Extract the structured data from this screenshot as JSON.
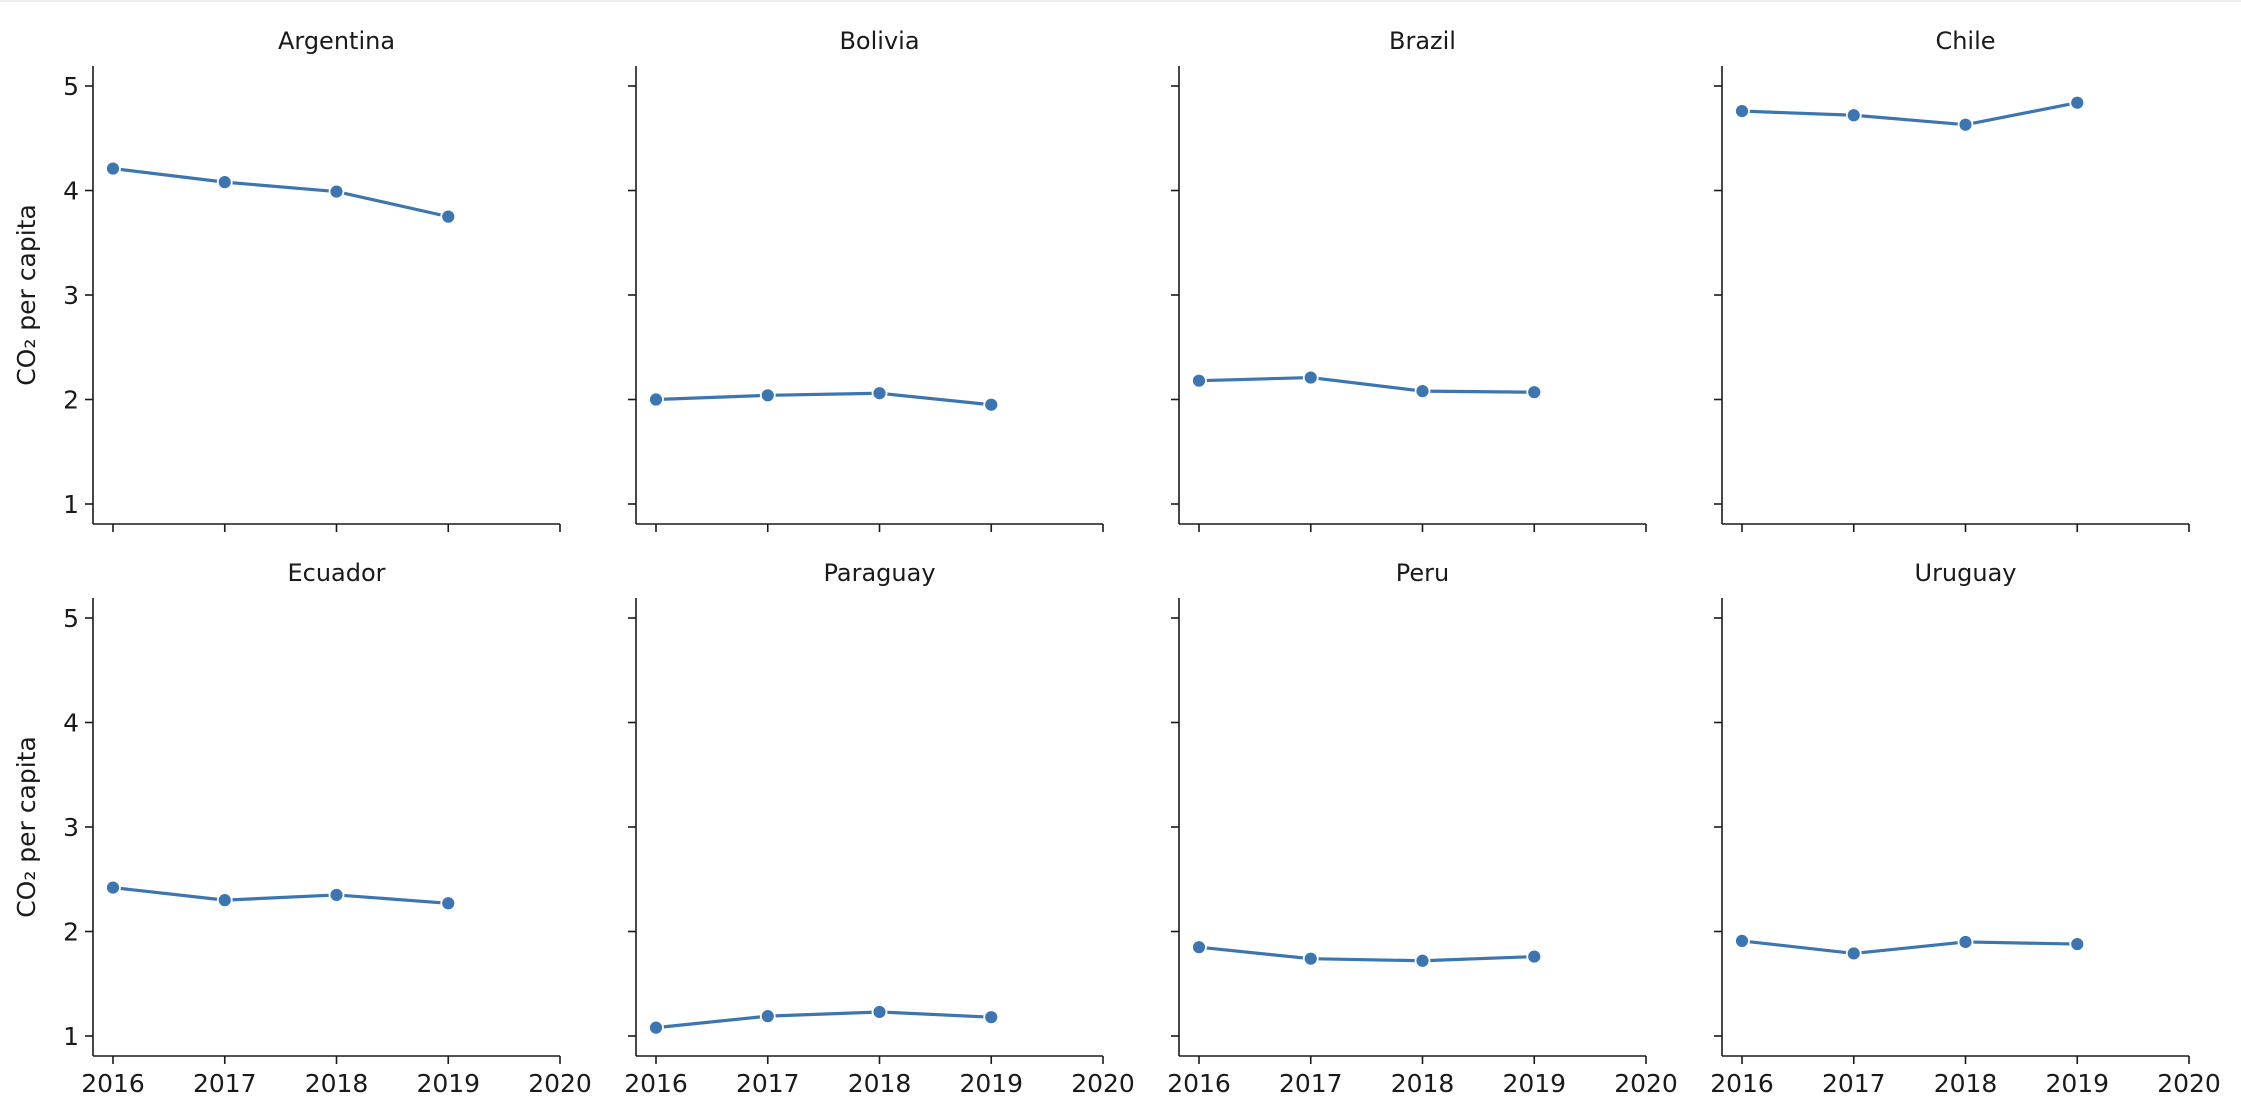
{
  "chart_data": {
    "type": "line",
    "layout": "facet-grid-2x4",
    "xlabel": "",
    "ylabel": "CO₂ per capita",
    "x_ticks": [
      "2016",
      "2017",
      "2018",
      "2019",
      "2020"
    ],
    "y_ticks": [
      "1",
      "2",
      "3",
      "4",
      "5"
    ],
    "xlim": [
      2016,
      2020
    ],
    "ylim": [
      1,
      5
    ],
    "x": [
      2016,
      2017,
      2018,
      2019
    ],
    "line_color": "#3d75b1",
    "marker": "circle",
    "grid": false,
    "sharey": true,
    "panels": [
      {
        "title": "Argentina",
        "values": [
          4.21,
          4.08,
          3.99,
          3.75
        ]
      },
      {
        "title": "Bolivia",
        "values": [
          2.0,
          2.04,
          2.06,
          1.95
        ]
      },
      {
        "title": "Brazil",
        "values": [
          2.18,
          2.21,
          2.08,
          2.07
        ]
      },
      {
        "title": "Chile",
        "values": [
          4.76,
          4.72,
          4.63,
          4.84
        ]
      },
      {
        "title": "Ecuador",
        "values": [
          2.42,
          2.3,
          2.35,
          2.27
        ]
      },
      {
        "title": "Paraguay",
        "values": [
          1.08,
          1.19,
          1.23,
          1.18
        ]
      },
      {
        "title": "Peru",
        "values": [
          1.85,
          1.74,
          1.72,
          1.76
        ]
      },
      {
        "title": "Uruguay",
        "values": [
          1.91,
          1.79,
          1.9,
          1.88
        ]
      }
    ]
  }
}
